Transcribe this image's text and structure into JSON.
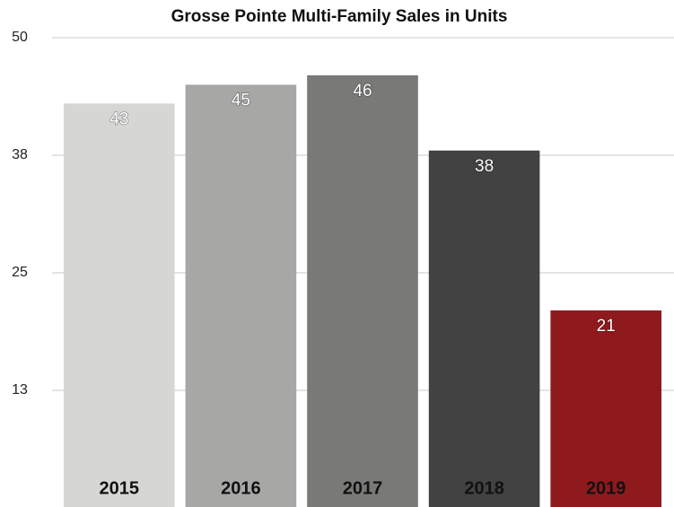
{
  "chart_data": {
    "type": "bar",
    "title": "Grosse Pointe Multi-Family Sales in Units",
    "categories": [
      "2015",
      "2016",
      "2017",
      "2018",
      "2019"
    ],
    "values": [
      43,
      45,
      46,
      38,
      21
    ],
    "colors": [
      "#d6d6d4",
      "#a7a8a6",
      "#797977",
      "#424242",
      "#8f1a1d"
    ],
    "ylim": [
      0,
      50
    ],
    "yticks": [
      {
        "value": 12.5,
        "label": "13"
      },
      25,
      {
        "value": 37.5,
        "label": "38"
      },
      50
    ],
    "grid": true
  }
}
